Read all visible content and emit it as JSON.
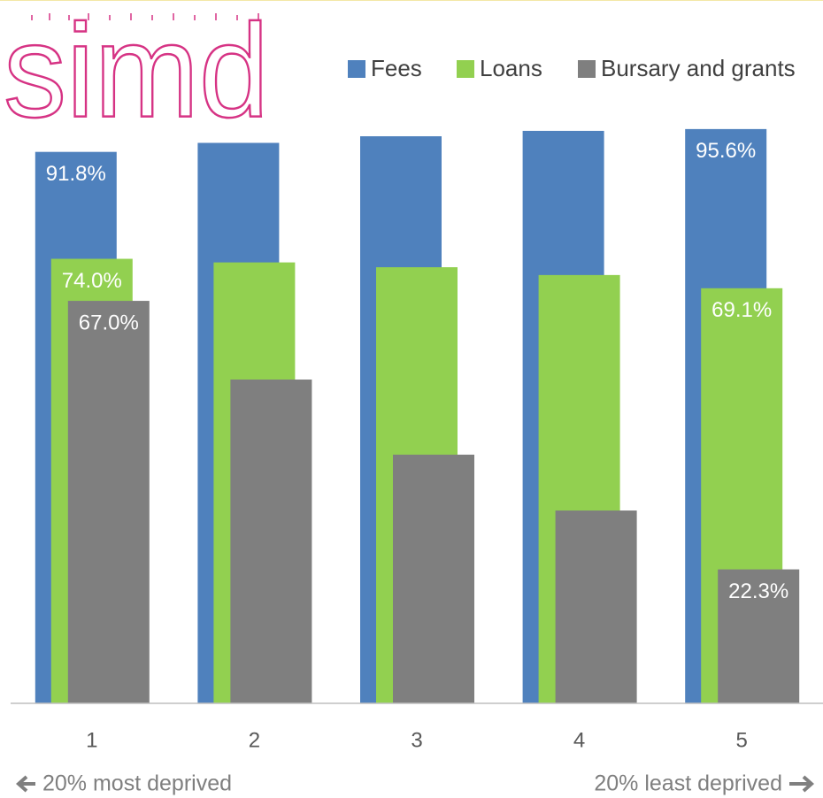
{
  "logo": "simd",
  "chart_data": {
    "type": "bar",
    "categories": [
      "1",
      "2",
      "3",
      "4",
      "5"
    ],
    "series": [
      {
        "name": "Fees",
        "color": "#4f81bd",
        "values": [
          91.8,
          93.3,
          94.4,
          95.3,
          95.6
        ],
        "value_labels": [
          "91.8%",
          null,
          null,
          null,
          "95.6%"
        ]
      },
      {
        "name": "Loans",
        "color": "#92d050",
        "values": [
          74.0,
          73.4,
          72.6,
          71.3,
          69.1
        ],
        "value_labels": [
          "74.0%",
          null,
          null,
          null,
          "69.1%"
        ]
      },
      {
        "name": "Bursary and grants",
        "color": "#7f7f7f",
        "values": [
          67.0,
          53.9,
          41.4,
          32.1,
          22.3
        ],
        "value_labels": [
          "67.0%",
          null,
          null,
          null,
          "22.3%"
        ]
      }
    ],
    "ylim": [
      0,
      100
    ],
    "legend": "top-right",
    "annotations": [
      "20% most deprived",
      "20% least deprived"
    ]
  }
}
